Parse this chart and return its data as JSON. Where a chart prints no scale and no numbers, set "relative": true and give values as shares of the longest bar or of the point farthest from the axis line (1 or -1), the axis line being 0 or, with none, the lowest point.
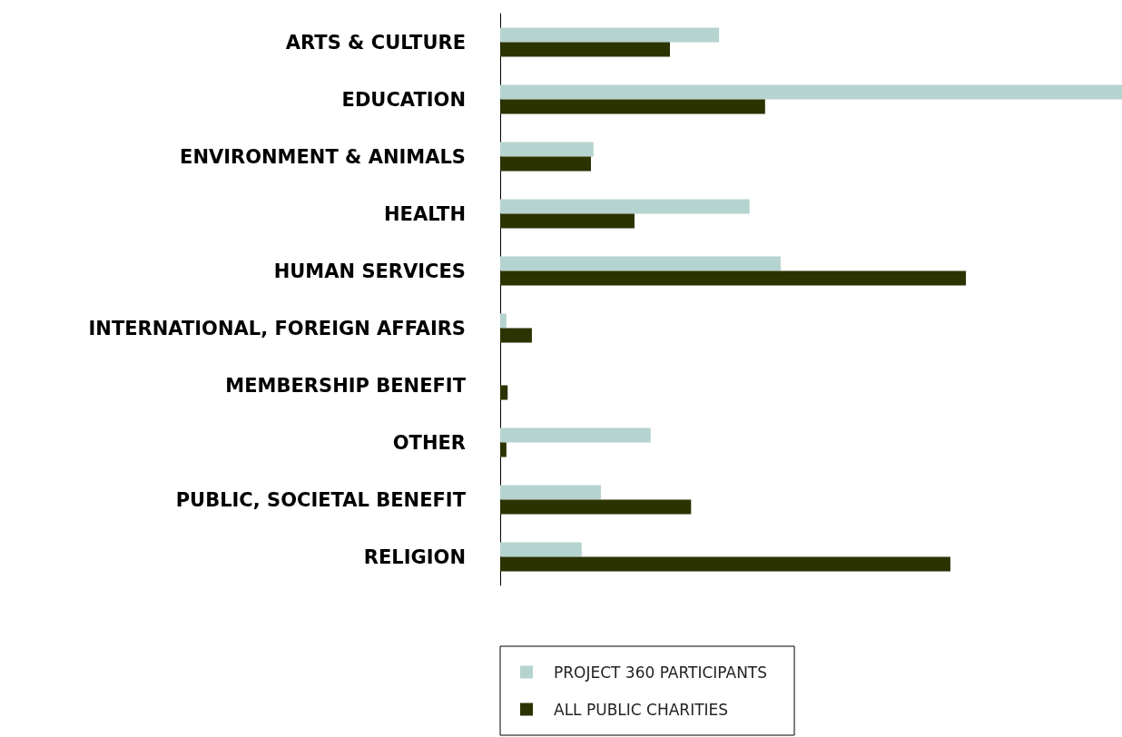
{
  "chart_data": {
    "type": "bar",
    "orientation": "horizontal",
    "relative": true,
    "legend": "bottom",
    "categories": [
      "ARTS & CULTURE",
      "EDUCATION",
      "ENVIRONMENT & ANIMALS",
      "HEALTH",
      "HUMAN SERVICES",
      "INTERNATIONAL, FOREIGN AFFAIRS",
      "MEMBERSHIP BENEFIT",
      "OTHER",
      "PUBLIC, SOCIETAL BENEFIT",
      "RELIGION"
    ],
    "series": [
      {
        "name": "PROJECT 360 PARTICIPANTS",
        "color": "#b5d3cf",
        "values": [
          0.352,
          1.0,
          0.15,
          0.401,
          0.451,
          0.01,
          0,
          0.242,
          0.162,
          0.131
        ]
      },
      {
        "name": "ALL PUBLIC CHARITIES",
        "color": "#2b3300",
        "values": [
          0.273,
          0.426,
          0.146,
          0.216,
          0.749,
          0.051,
          0.012,
          0.01,
          0.307,
          0.724
        ]
      }
    ]
  }
}
